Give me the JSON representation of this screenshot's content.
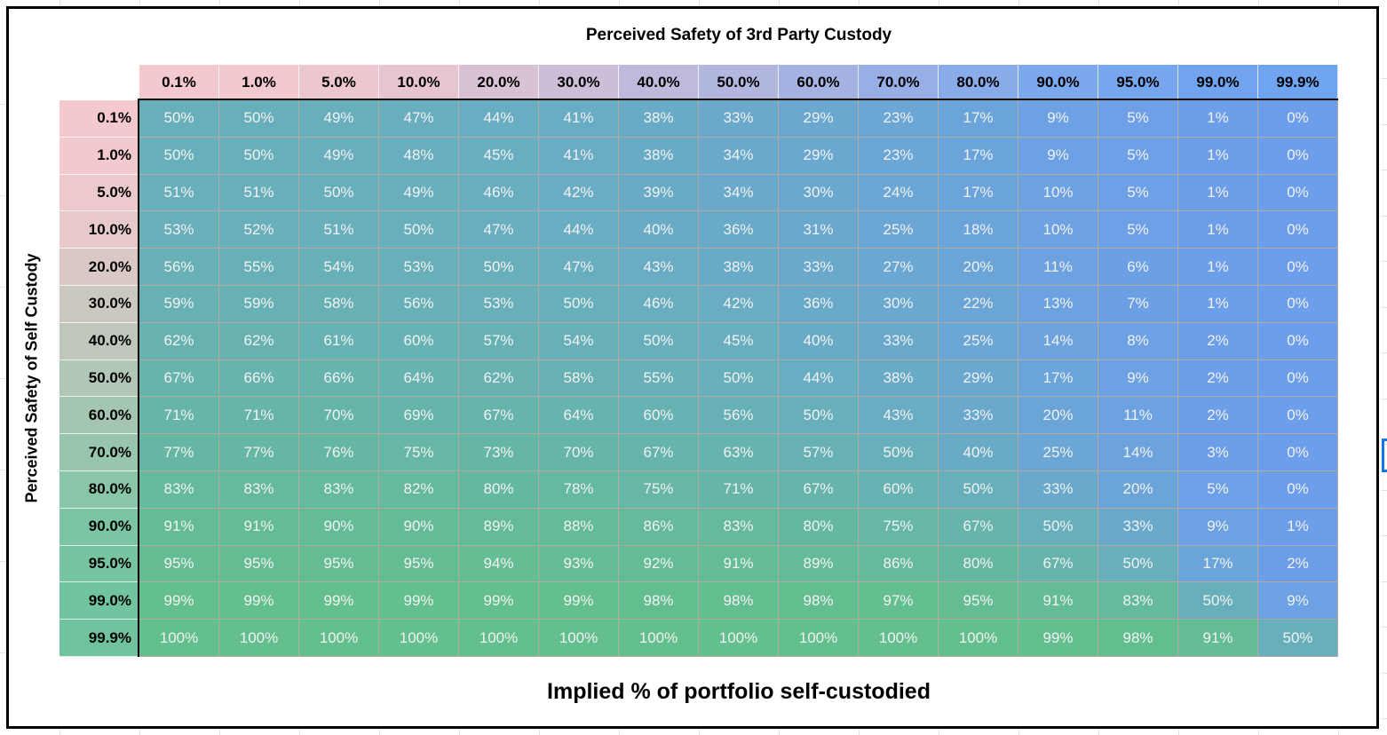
{
  "titles": {
    "top": "Perceived Safety of 3rd Party Custody",
    "left": "Perceived Safety of Self Custody",
    "bottom": "Implied % of portfolio self-custodied"
  },
  "colors": {
    "cell_low": "#6D9EEB",
    "cell_high": "#63BF8D",
    "header_low": "#F3C9CD",
    "col_header_high": "#6FA4F0",
    "row_header_high": "#6FC49E",
    "grid_line": "#b2aba4",
    "table_border": "#000000",
    "selection": "#1a73e8",
    "sheet_gridline": "#e2e2e2",
    "cell_text": "#f2f2f2",
    "header_text": "#000000"
  },
  "chart_data": {
    "type": "heatmap",
    "title": "Perceived Safety of 3rd Party Custody",
    "xlabel": "Perceived Safety of 3rd Party Custody",
    "ylabel": "Perceived Safety of Self Custody",
    "value_label": "Implied % of portfolio self-custodied",
    "cell_value_suffix": "%",
    "color_scale": {
      "min_value": 0,
      "min_color": "#6D9EEB",
      "max_value": 100,
      "max_color": "#63BF8D"
    },
    "columns": [
      "0.1%",
      "1.0%",
      "5.0%",
      "10.0%",
      "20.0%",
      "30.0%",
      "40.0%",
      "50.0%",
      "60.0%",
      "70.0%",
      "80.0%",
      "90.0%",
      "95.0%",
      "99.0%",
      "99.9%"
    ],
    "rows": [
      "0.1%",
      "1.0%",
      "5.0%",
      "10.0%",
      "20.0%",
      "30.0%",
      "40.0%",
      "50.0%",
      "60.0%",
      "70.0%",
      "80.0%",
      "90.0%",
      "95.0%",
      "99.0%",
      "99.9%"
    ],
    "values": [
      [
        50,
        50,
        49,
        47,
        44,
        41,
        38,
        33,
        29,
        23,
        17,
        9,
        5,
        1,
        0
      ],
      [
        50,
        50,
        49,
        48,
        45,
        41,
        38,
        34,
        29,
        23,
        17,
        9,
        5,
        1,
        0
      ],
      [
        51,
        51,
        50,
        49,
        46,
        42,
        39,
        34,
        30,
        24,
        17,
        10,
        5,
        1,
        0
      ],
      [
        53,
        52,
        51,
        50,
        47,
        44,
        40,
        36,
        31,
        25,
        18,
        10,
        5,
        1,
        0
      ],
      [
        56,
        55,
        54,
        53,
        50,
        47,
        43,
        38,
        33,
        27,
        20,
        11,
        6,
        1,
        0
      ],
      [
        59,
        59,
        58,
        56,
        53,
        50,
        46,
        42,
        36,
        30,
        22,
        13,
        7,
        1,
        0
      ],
      [
        62,
        62,
        61,
        60,
        57,
        54,
        50,
        45,
        40,
        33,
        25,
        14,
        8,
        2,
        0
      ],
      [
        67,
        66,
        66,
        64,
        62,
        58,
        55,
        50,
        44,
        38,
        29,
        17,
        9,
        2,
        0
      ],
      [
        71,
        71,
        70,
        69,
        67,
        64,
        60,
        56,
        50,
        43,
        33,
        20,
        11,
        2,
        0
      ],
      [
        77,
        77,
        76,
        75,
        73,
        70,
        67,
        63,
        57,
        50,
        40,
        25,
        14,
        3,
        0
      ],
      [
        83,
        83,
        83,
        82,
        80,
        78,
        75,
        71,
        67,
        60,
        50,
        33,
        20,
        5,
        0
      ],
      [
        91,
        91,
        90,
        90,
        89,
        88,
        86,
        83,
        80,
        75,
        67,
        50,
        33,
        9,
        1
      ],
      [
        95,
        95,
        95,
        95,
        94,
        93,
        92,
        91,
        89,
        86,
        80,
        67,
        50,
        17,
        2
      ],
      [
        99,
        99,
        99,
        99,
        99,
        99,
        98,
        98,
        98,
        97,
        95,
        91,
        83,
        50,
        9
      ],
      [
        100,
        100,
        100,
        100,
        100,
        100,
        100,
        100,
        100,
        100,
        100,
        99,
        98,
        91,
        50
      ]
    ]
  }
}
